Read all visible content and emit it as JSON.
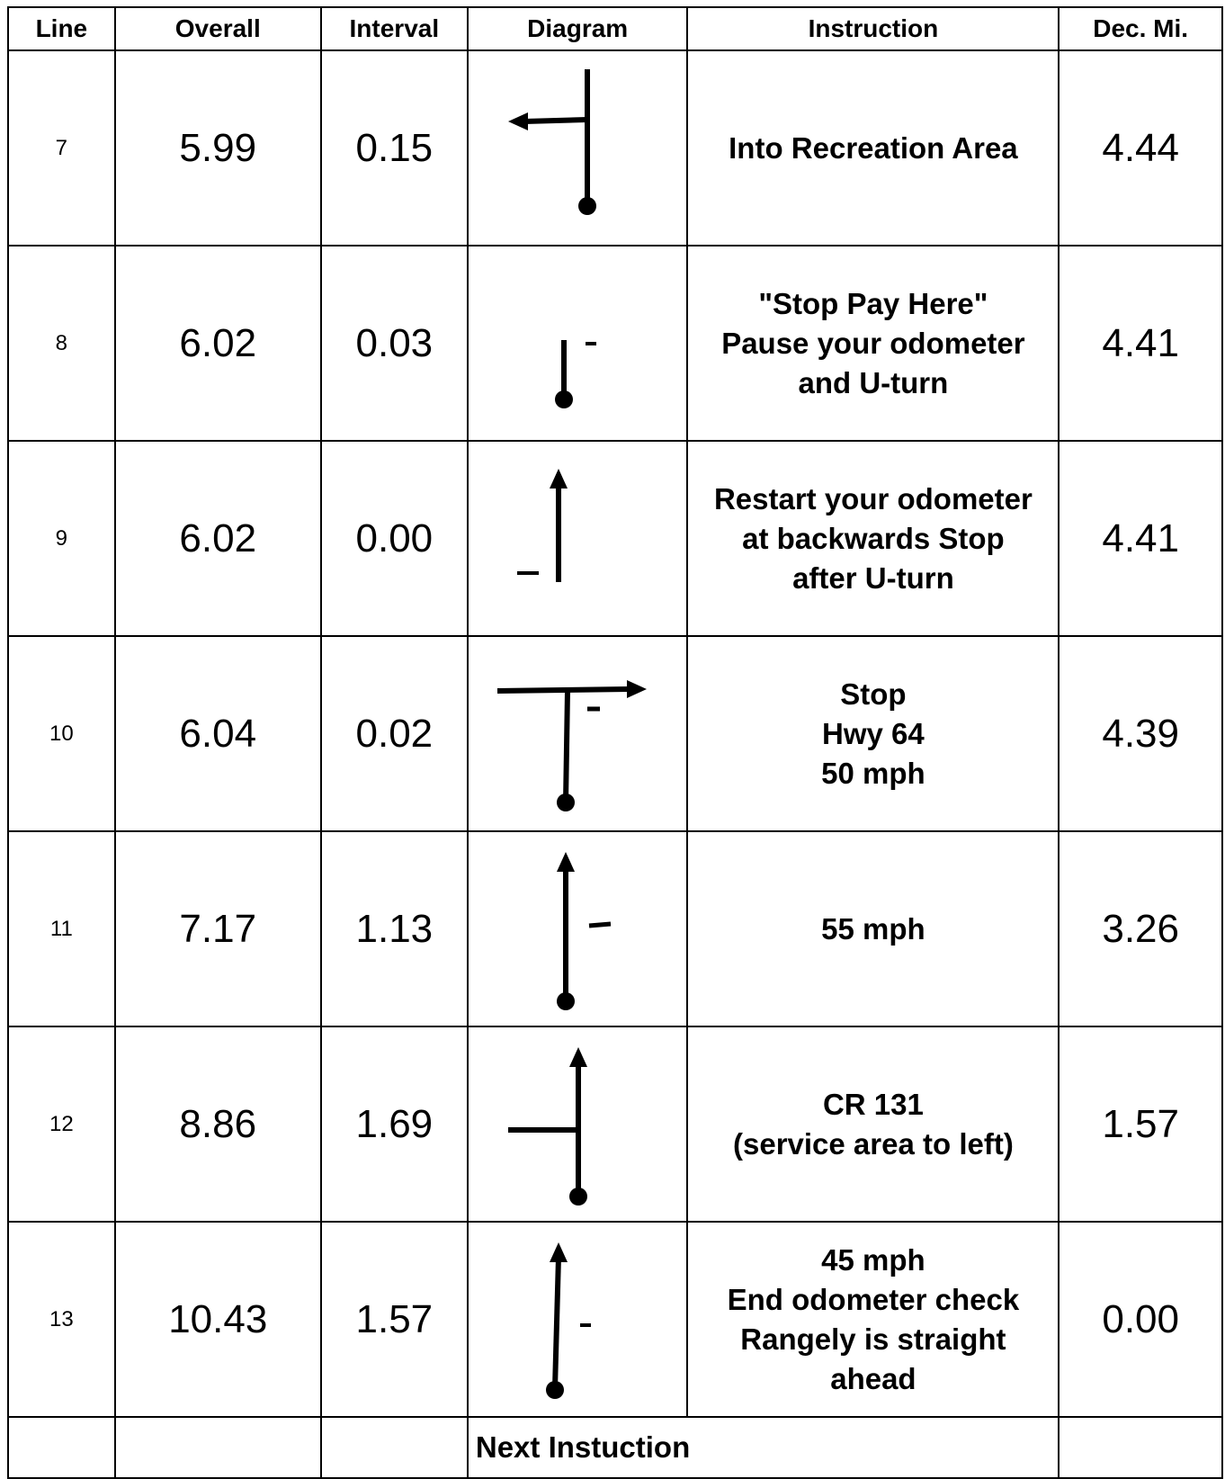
{
  "columns": {
    "line": "Line",
    "overall": "Overall",
    "interval": "Interval",
    "diagram": "Diagram",
    "instruction": "Instruction",
    "dec_mi": "Dec. Mi."
  },
  "rows": [
    {
      "line": "7",
      "overall": "5.99",
      "interval": "0.15",
      "diagram": "left-turn-tee",
      "instruction": [
        "Into Recreation Area"
      ],
      "dec_mi": "4.44"
    },
    {
      "line": "8",
      "overall": "6.02",
      "interval": "0.03",
      "diagram": "stop-short",
      "instruction": [
        "\"Stop Pay Here\"",
        "Pause your odometer",
        "and U-turn"
      ],
      "dec_mi": "4.41"
    },
    {
      "line": "9",
      "overall": "6.02",
      "interval": "0.00",
      "diagram": "straight-arrow",
      "instruction": [
        "Restart your odometer",
        "at backwards Stop",
        "after U-turn"
      ],
      "dec_mi": "4.41"
    },
    {
      "line": "10",
      "overall": "6.04",
      "interval": "0.02",
      "diagram": "right-turn-tee",
      "instruction": [
        "Stop",
        "Hwy 64",
        "50 mph"
      ],
      "dec_mi": "4.39"
    },
    {
      "line": "11",
      "overall": "7.17",
      "interval": "1.13",
      "diagram": "straight-arrow-dot",
      "instruction": [
        "55 mph"
      ],
      "dec_mi": "3.26"
    },
    {
      "line": "12",
      "overall": "8.86",
      "interval": "1.69",
      "diagram": "straight-with-left-branch",
      "instruction": [
        "CR 131",
        "(service area to left)"
      ],
      "dec_mi": "1.57"
    },
    {
      "line": "13",
      "overall": "10.43",
      "interval": "1.57",
      "diagram": "straight-arrow-dot-slant",
      "instruction": [
        "45 mph",
        "End odometer check",
        "Rangely is straight",
        "ahead"
      ],
      "dec_mi": "0.00"
    }
  ],
  "footer": {
    "next_label": "Next Instuction"
  }
}
